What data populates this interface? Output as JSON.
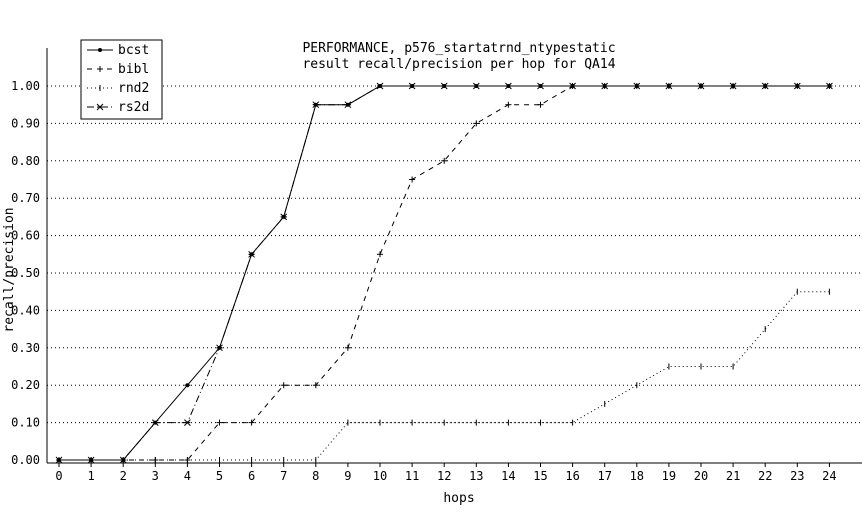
{
  "chart_data": {
    "type": "line",
    "title": "PERFORMANCE, p576_startatrnd_ntypestatic",
    "subtitle": "result recall/precision per hop for QA14",
    "xlabel": "hops",
    "ylabel": "recall/precision",
    "xlim": [
      0,
      24
    ],
    "ylim": [
      0,
      1
    ],
    "x_ticks": [
      "0",
      "1",
      "2",
      "3",
      "4",
      "5",
      "6",
      "7",
      "8",
      "9",
      "10",
      "11",
      "12",
      "13",
      "14",
      "15",
      "16",
      "17",
      "18",
      "19",
      "20",
      "21",
      "22",
      "23",
      "24"
    ],
    "y_ticks": [
      "0.00",
      "0.10",
      "0.20",
      "0.30",
      "0.40",
      "0.50",
      "0.60",
      "0.70",
      "0.80",
      "0.90",
      "1.00"
    ],
    "grid": "horizontal",
    "legend_position": "top-left",
    "series": [
      {
        "name": "bcst",
        "line_style": "solid",
        "marker": "dot",
        "x": [
          0,
          1,
          2,
          3,
          4,
          5,
          6,
          7,
          8,
          9,
          10,
          11,
          12,
          13,
          14,
          15,
          16,
          17,
          18,
          19,
          20,
          21,
          22,
          23,
          24
        ],
        "y": [
          0,
          0,
          0,
          0.1,
          0.2,
          0.3,
          0.55,
          0.65,
          0.95,
          0.95,
          1,
          1,
          1,
          1,
          1,
          1,
          1,
          1,
          1,
          1,
          1,
          1,
          1,
          1,
          1
        ]
      },
      {
        "name": "bibl",
        "line_style": "dashed",
        "marker": "plus",
        "x": [
          0,
          1,
          2,
          3,
          4,
          5,
          6,
          7,
          8,
          9,
          10,
          11,
          12,
          13,
          14,
          15,
          16,
          17,
          18,
          19,
          20,
          21,
          22,
          23,
          24
        ],
        "y": [
          0,
          0,
          0,
          0,
          0,
          0.1,
          0.1,
          0.2,
          0.2,
          0.3,
          0.55,
          0.75,
          0.8,
          0.9,
          0.95,
          0.95,
          1,
          1,
          1,
          1,
          1,
          1,
          1,
          1,
          1
        ]
      },
      {
        "name": "rnd2",
        "line_style": "dotted",
        "marker": "tick",
        "x": [
          0,
          1,
          2,
          3,
          4,
          5,
          6,
          7,
          8,
          9,
          10,
          11,
          12,
          13,
          14,
          15,
          16,
          17,
          18,
          19,
          20,
          21,
          22,
          23,
          24
        ],
        "y": [
          0,
          0,
          0,
          0,
          0,
          0,
          0,
          0,
          0,
          0.1,
          0.1,
          0.1,
          0.1,
          0.1,
          0.1,
          0.1,
          0.1,
          0.15,
          0.2,
          0.25,
          0.25,
          0.25,
          0.35,
          0.45,
          0.45
        ]
      },
      {
        "name": "rs2d",
        "line_style": "dashdot",
        "marker": "star",
        "x": [
          0,
          1,
          2,
          3,
          4,
          5,
          6,
          7,
          8,
          9,
          10,
          11,
          12,
          13,
          14,
          15,
          16,
          17,
          18,
          19,
          20,
          21,
          22,
          23,
          24
        ],
        "y": [
          0,
          0,
          0,
          0.1,
          0.1,
          0.3,
          0.55,
          0.65,
          0.95,
          0.95,
          1,
          1,
          1,
          1,
          1,
          1,
          1,
          1,
          1,
          1,
          1,
          1,
          1,
          1,
          1
        ]
      }
    ]
  }
}
